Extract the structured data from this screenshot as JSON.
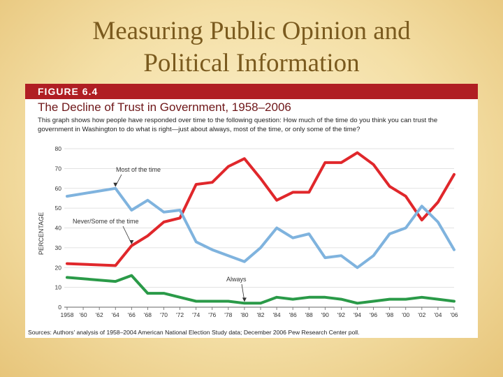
{
  "slide": {
    "title_line1": "Measuring Public Opinion and",
    "title_line2": "Political Information"
  },
  "figure": {
    "label": "FIGURE 6.4",
    "title": "The Decline of Trust in Government, 1958–2006",
    "description": "This graph shows how people have responded over time to the following question: How much of the time do you think you can trust the government in Washington to do what is right—just about always, most of the time, or only some of the time?",
    "source": "Sources: Authors' analysis of 1958–2004 American National Election Study data; December 2006 Pew Research Center poll."
  },
  "colors": {
    "band": "#b01e23",
    "never_some": "#e0272b",
    "most": "#7fb3de",
    "always": "#2a9a48"
  },
  "chart_data": {
    "type": "line",
    "ylabel": "PERCENTAGE",
    "xlabel": "",
    "ylim": [
      0,
      80
    ],
    "yticks": [
      0,
      10,
      20,
      30,
      40,
      50,
      60,
      70,
      80
    ],
    "grid": true,
    "x": [
      1958,
      1964,
      1966,
      1968,
      1970,
      1972,
      1974,
      1976,
      1978,
      1980,
      1982,
      1984,
      1986,
      1988,
      1990,
      1992,
      1994,
      1996,
      1998,
      2000,
      2002,
      2004,
      2006
    ],
    "xtick_labels": [
      "1958",
      "'60",
      "'62",
      "'64",
      "'66",
      "'68",
      "'70",
      "'72",
      "'74",
      "'76",
      "'78",
      "'80",
      "'82",
      "'84",
      "'86",
      "'88",
      "'90",
      "'92",
      "'94",
      "'96",
      "'98",
      "'00",
      "'02",
      "'04",
      "'06"
    ],
    "xtick_years": [
      1958,
      1960,
      1962,
      1964,
      1966,
      1968,
      1970,
      1972,
      1974,
      1976,
      1978,
      1980,
      1982,
      1984,
      1986,
      1988,
      1990,
      1992,
      1994,
      1996,
      1998,
      2000,
      2002,
      2004,
      2006
    ],
    "series": [
      {
        "name": "Never/Some of the time",
        "color": "#e0272b",
        "values": [
          22,
          21,
          31,
          36,
          43,
          45,
          62,
          63,
          71,
          75,
          65,
          54,
          58,
          58,
          73,
          73,
          78,
          72,
          61,
          56,
          44,
          53,
          67
        ]
      },
      {
        "name": "Most of the time",
        "color": "#7fb3de",
        "values": [
          56,
          60,
          49,
          54,
          48,
          49,
          33,
          29,
          26,
          23,
          30,
          40,
          35,
          37,
          25,
          26,
          20,
          26,
          37,
          40,
          51,
          43,
          29
        ]
      },
      {
        "name": "Always",
        "color": "#2a9a48",
        "values": [
          15,
          13,
          16,
          7,
          7,
          5,
          3,
          3,
          3,
          2,
          2,
          5,
          4,
          5,
          5,
          4,
          2,
          3,
          4,
          4,
          5,
          4,
          3
        ]
      }
    ],
    "annotations": [
      {
        "text": "Most of the time",
        "series": "Most of the time",
        "at_year": 1964
      },
      {
        "text": "Never/Some of the time",
        "series": "Never/Some of the time",
        "at_year": 1966
      },
      {
        "text": "Always",
        "series": "Always",
        "at_year": 1980
      }
    ]
  }
}
